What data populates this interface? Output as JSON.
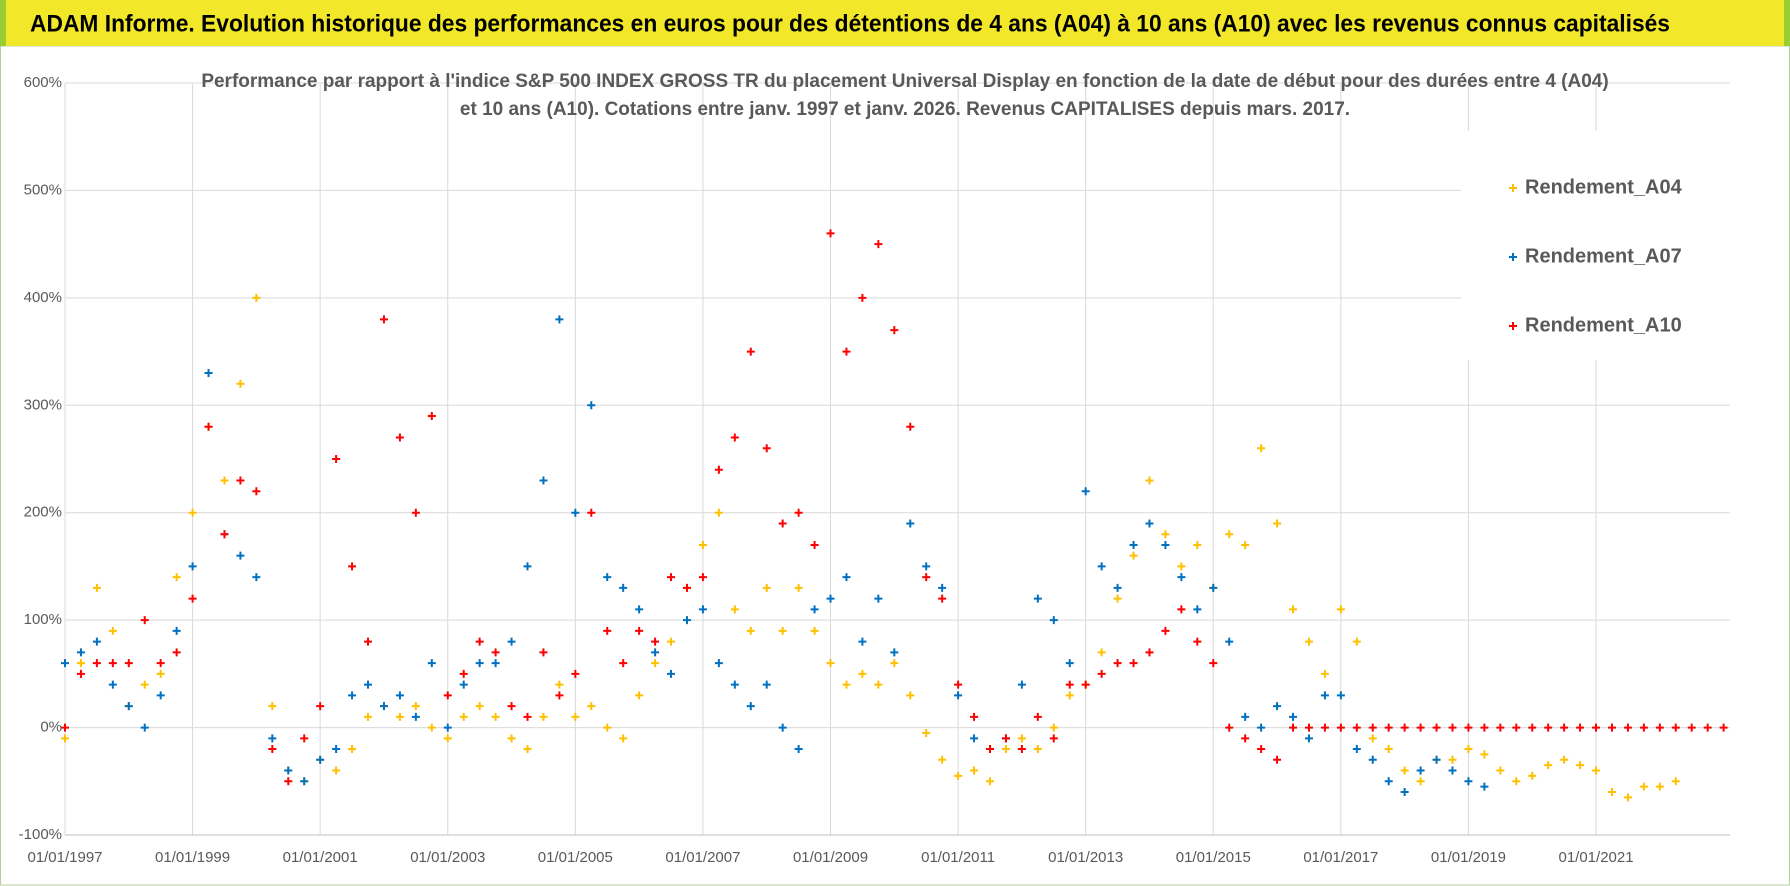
{
  "header": {
    "title": "ADAM Informe. Evolution historique des performances en euros pour des détentions de 4 ans (A04) à 10 ans (A10) avec les revenus connus capitalisés"
  },
  "chart_data": {
    "type": "scatter",
    "title": "Performance par rapport à l'indice S&P 500 INDEX GROSS TR  du placement Universal Display en fonction de la date de début pour des durées entre 4 (A04) et 10 ans (A10). Cotations entre janv. 1997 et janv. 2026. Revenus CAPITALISES depuis mars. 2017.",
    "x": [
      1997,
      1997.25,
      1997.5,
      1997.75,
      1998,
      1998.25,
      1998.5,
      1998.75,
      1999,
      1999.25,
      1999.5,
      1999.75,
      2000,
      2000.25,
      2000.5,
      2000.75,
      2001,
      2001.25,
      2001.5,
      2001.75,
      2002,
      2002.25,
      2002.5,
      2002.75,
      2003,
      2003.25,
      2003.5,
      2003.75,
      2004,
      2004.25,
      2004.5,
      2004.75,
      2005,
      2005.25,
      2005.5,
      2005.75,
      2006,
      2006.25,
      2006.5,
      2006.75,
      2007,
      2007.25,
      2007.5,
      2007.75,
      2008,
      2008.25,
      2008.5,
      2008.75,
      2009,
      2009.25,
      2009.5,
      2009.75,
      2010,
      2010.25,
      2010.5,
      2010.75,
      2011,
      2011.25,
      2011.5,
      2011.75,
      2012,
      2012.25,
      2012.5,
      2012.75,
      2013,
      2013.25,
      2013.5,
      2013.75,
      2014,
      2014.25,
      2014.5,
      2014.75,
      2015,
      2015.25,
      2015.5,
      2015.75,
      2016,
      2016.25,
      2016.5,
      2016.75,
      2017,
      2017.25,
      2017.5,
      2017.75,
      2018,
      2018.25,
      2018.5,
      2018.75,
      2019,
      2019.25,
      2019.5,
      2019.75,
      2020,
      2020.25,
      2020.5,
      2020.75,
      2021,
      2021.25,
      2021.5,
      2021.75,
      2022,
      2022.25,
      2022.5,
      2022.75,
      2023
    ],
    "series": [
      {
        "name": "Rendement_A04",
        "color": "#ffc000",
        "values": [
          -10,
          60,
          130,
          90,
          20,
          40,
          50,
          140,
          200,
          280,
          230,
          320,
          400,
          20,
          -40,
          -50,
          -30,
          -40,
          -20,
          10,
          20,
          10,
          20,
          0,
          -10,
          10,
          20,
          10,
          -10,
          -20,
          10,
          40,
          10,
          20,
          0,
          -10,
          30,
          60,
          80,
          130,
          170,
          200,
          110,
          90,
          130,
          90,
          130,
          90,
          60,
          40,
          50,
          40,
          60,
          30,
          -5,
          -30,
          -45,
          -40,
          -50,
          -20,
          -10,
          -20,
          0,
          30,
          40,
          70,
          120,
          160,
          230,
          180,
          150,
          170,
          130,
          180,
          170,
          260,
          190,
          110,
          80,
          50,
          110,
          80,
          -10,
          -20,
          -40,
          -50,
          -30,
          -30,
          -20,
          -25,
          -40,
          -50,
          -45,
          -35,
          -30,
          -35,
          -40,
          -60,
          -65,
          -55,
          -55,
          -50,
          null,
          null,
          null
        ]
      },
      {
        "name": "Rendement_A07",
        "color": "#0070c0",
        "values": [
          60,
          70,
          80,
          40,
          20,
          0,
          30,
          90,
          150,
          330,
          180,
          160,
          140,
          -10,
          -40,
          -50,
          -30,
          -20,
          30,
          40,
          20,
          30,
          10,
          60,
          0,
          40,
          60,
          60,
          80,
          150,
          230,
          380,
          200,
          300,
          140,
          130,
          110,
          70,
          50,
          100,
          110,
          60,
          40,
          20,
          40,
          0,
          -20,
          110,
          120,
          140,
          80,
          120,
          70,
          190,
          150,
          130,
          30,
          -10,
          -20,
          -10,
          40,
          120,
          100,
          60,
          220,
          150,
          130,
          170,
          190,
          170,
          140,
          110,
          130,
          80,
          10,
          0,
          20,
          10,
          -10,
          30,
          30,
          -20,
          -30,
          -50,
          -60,
          -40,
          -30,
          -40,
          -50,
          -55,
          null,
          null,
          null,
          null,
          null,
          null,
          null,
          null,
          null,
          null,
          null,
          null,
          null,
          null,
          null
        ]
      },
      {
        "name": "Rendement_A10",
        "color": "#ff0000",
        "values": [
          0,
          50,
          60,
          60,
          60,
          100,
          60,
          70,
          120,
          280,
          180,
          230,
          220,
          -20,
          -50,
          -10,
          20,
          250,
          150,
          80,
          380,
          270,
          200,
          290,
          30,
          50,
          80,
          70,
          20,
          10,
          70,
          30,
          50,
          200,
          90,
          60,
          90,
          80,
          140,
          130,
          140,
          240,
          270,
          350,
          260,
          190,
          200,
          170,
          460,
          350,
          400,
          450,
          370,
          280,
          140,
          120,
          40,
          10,
          -20,
          -10,
          -20,
          10,
          -10,
          40,
          40,
          50,
          60,
          60,
          70,
          90,
          110,
          80,
          60,
          0,
          -10,
          -20,
          -30,
          0,
          0,
          0,
          0,
          0,
          0,
          0,
          0,
          0,
          0,
          0,
          0,
          0,
          0,
          0,
          0,
          0,
          0,
          0,
          0,
          0,
          0,
          0,
          0,
          0,
          0,
          0,
          0
        ]
      }
    ],
    "xlim": [
      1997,
      2023.1
    ],
    "xticks": [
      {
        "value": 1997,
        "label": "01/01/1997"
      },
      {
        "value": 1999,
        "label": "01/01/1999"
      },
      {
        "value": 2001,
        "label": "01/01/2001"
      },
      {
        "value": 2003,
        "label": "01/01/2003"
      },
      {
        "value": 2005,
        "label": "01/01/2005"
      },
      {
        "value": 2007,
        "label": "01/01/2007"
      },
      {
        "value": 2009,
        "label": "01/01/2009"
      },
      {
        "value": 2011,
        "label": "01/01/2011"
      },
      {
        "value": 2013,
        "label": "01/01/2013"
      },
      {
        "value": 2015,
        "label": "01/01/2015"
      },
      {
        "value": 2017,
        "label": "01/01/2017"
      },
      {
        "value": 2019,
        "label": "01/01/2019"
      },
      {
        "value": 2021,
        "label": "01/01/2021"
      }
    ],
    "ylim": [
      -100,
      600
    ],
    "yticks": [
      {
        "value": -100,
        "label": "-100%"
      },
      {
        "value": 0,
        "label": "0%"
      },
      {
        "value": 100,
        "label": "100%"
      },
      {
        "value": 200,
        "label": "200%"
      },
      {
        "value": 300,
        "label": "300%"
      },
      {
        "value": 400,
        "label": "400%"
      },
      {
        "value": 500,
        "label": "500%"
      },
      {
        "value": 600,
        "label": "600%"
      }
    ],
    "grid": true,
    "legend": "top-right"
  }
}
